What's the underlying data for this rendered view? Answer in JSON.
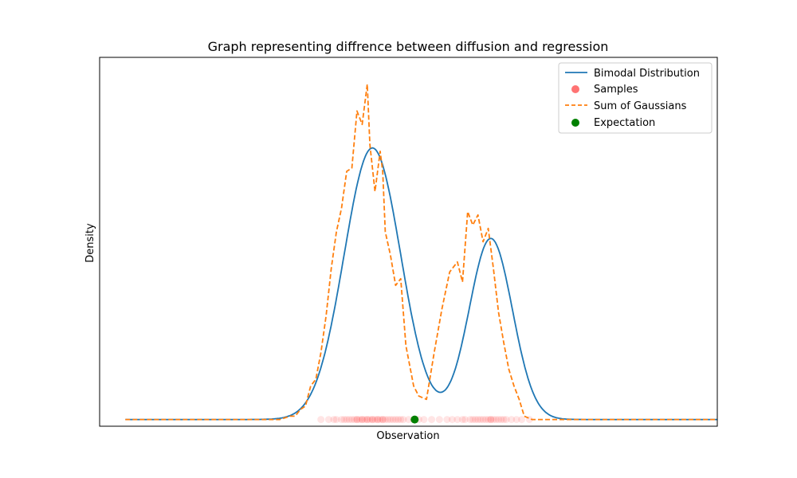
{
  "chart_data": {
    "type": "line",
    "title": "Graph representing diffrence between diffusion and regression",
    "xlabel": "Observation",
    "ylabel": "Density",
    "show_ticks": false,
    "grid": false,
    "legend_placement": "top-right",
    "xlim": [
      -1.0,
      11.0
    ],
    "ylim": [
      -0.02,
      1.08
    ],
    "series": [
      {
        "name": "Bimodal Distribution",
        "kind": "line",
        "color": "#1f77b4",
        "style": "solid",
        "components": [
          {
            "mu": 4.3,
            "sigma": 0.55,
            "amp": 0.81
          },
          {
            "mu": 6.6,
            "sigma": 0.42,
            "amp": 0.54
          }
        ]
      },
      {
        "name": "Sum of Gaussians",
        "kind": "line",
        "color": "#ff7f0e",
        "style": "dashed",
        "x": [
          -0.5,
          2.5,
          2.7,
          2.8,
          2.9,
          3.0,
          3.1,
          3.2,
          3.3,
          3.4,
          3.5,
          3.6,
          3.7,
          3.8,
          3.9,
          4.0,
          4.1,
          4.2,
          4.25,
          4.3,
          4.35,
          4.45,
          4.5,
          4.55,
          4.65,
          4.75,
          4.85,
          4.95,
          5.1,
          5.2,
          5.35,
          5.5,
          5.65,
          5.8,
          5.95,
          6.05,
          6.15,
          6.25,
          6.35,
          6.45,
          6.55,
          6.65,
          6.75,
          6.85,
          6.95,
          7.05,
          7.15,
          7.25,
          7.4,
          7.6,
          7.8,
          11.0
        ],
        "y": [
          0.0,
          0.0,
          0.01,
          0.01,
          0.03,
          0.04,
          0.1,
          0.12,
          0.2,
          0.31,
          0.45,
          0.56,
          0.63,
          0.74,
          0.75,
          0.92,
          0.88,
          1.0,
          0.82,
          0.75,
          0.68,
          0.8,
          0.74,
          0.56,
          0.49,
          0.4,
          0.42,
          0.22,
          0.1,
          0.07,
          0.06,
          0.2,
          0.33,
          0.44,
          0.47,
          0.41,
          0.62,
          0.58,
          0.61,
          0.53,
          0.57,
          0.45,
          0.32,
          0.23,
          0.15,
          0.1,
          0.06,
          0.01,
          0.0,
          0.0,
          0.0,
          0.0
        ]
      }
    ],
    "samples": {
      "name": "Samples",
      "kind": "scatter",
      "color": "#ff0000",
      "y": 0.0,
      "x": [
        3.3,
        3.45,
        3.55,
        3.6,
        3.7,
        3.75,
        3.8,
        3.85,
        3.9,
        3.95,
        4.0,
        4.0,
        4.05,
        4.1,
        4.1,
        4.15,
        4.2,
        4.2,
        4.25,
        4.3,
        4.3,
        4.35,
        4.4,
        4.4,
        4.45,
        4.5,
        4.5,
        4.55,
        4.6,
        4.65,
        4.7,
        4.75,
        4.8,
        4.85,
        4.9,
        5.0,
        5.1,
        5.2,
        5.3,
        5.45,
        5.6,
        5.75,
        5.85,
        5.95,
        6.05,
        6.1,
        6.2,
        6.25,
        6.3,
        6.35,
        6.4,
        6.45,
        6.5,
        6.55,
        6.6,
        6.6,
        6.65,
        6.7,
        6.75,
        6.8,
        6.85,
        6.9,
        7.0,
        7.1,
        7.2,
        7.35
      ]
    },
    "expectation": {
      "name": "Expectation",
      "kind": "scatter",
      "color": "#008000",
      "x": 5.12,
      "y": 0.0
    }
  }
}
